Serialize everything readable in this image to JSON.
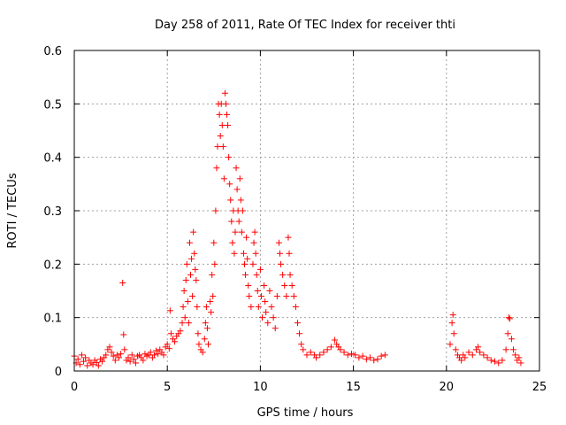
{
  "chart_data": {
    "type": "scatter",
    "title": "Day 258 of 2011, Rate Of TEC Index for receiver thti",
    "xlabel": "GPS time / hours",
    "ylabel": "ROTI / TECUs",
    "xlim": [
      0,
      25
    ],
    "ylim": [
      0,
      0.6
    ],
    "xticks": [
      0,
      5,
      10,
      15,
      20,
      25
    ],
    "xtick_labels": [
      "0",
      "5",
      "10",
      "15",
      "20",
      "25"
    ],
    "yticks": [
      0,
      0.1,
      0.2,
      0.3,
      0.4,
      0.5,
      0.6
    ],
    "ytick_labels": [
      "0",
      "0.1",
      "0.2",
      "0.3",
      "0.4",
      "0.5",
      "0.6"
    ],
    "grid": true,
    "marker": "plus",
    "color": "#ff0000",
    "series": [
      {
        "values_note": "",
        "points": [
          [
            0.0,
            0.028
          ],
          [
            0.1,
            0.015
          ],
          [
            0.2,
            0.022
          ],
          [
            0.3,
            0.012
          ],
          [
            0.4,
            0.03
          ],
          [
            0.5,
            0.018
          ],
          [
            0.6,
            0.025
          ],
          [
            0.7,
            0.01
          ],
          [
            0.8,
            0.02
          ],
          [
            0.9,
            0.015
          ],
          [
            1.0,
            0.012
          ],
          [
            1.1,
            0.02
          ],
          [
            1.2,
            0.016
          ],
          [
            1.3,
            0.01
          ],
          [
            1.4,
            0.022
          ],
          [
            1.5,
            0.018
          ],
          [
            1.6,
            0.025
          ],
          [
            1.7,
            0.03
          ],
          [
            1.8,
            0.04
          ],
          [
            1.9,
            0.045
          ],
          [
            2.0,
            0.035
          ],
          [
            2.1,
            0.028
          ],
          [
            2.2,
            0.02
          ],
          [
            2.3,
            0.03
          ],
          [
            2.4,
            0.025
          ],
          [
            2.5,
            0.032
          ],
          [
            2.6,
            0.165
          ],
          [
            2.65,
            0.068
          ],
          [
            2.7,
            0.04
          ],
          [
            2.8,
            0.02
          ],
          [
            2.9,
            0.025
          ],
          [
            3.0,
            0.018
          ],
          [
            3.1,
            0.03
          ],
          [
            3.2,
            0.022
          ],
          [
            3.3,
            0.015
          ],
          [
            3.4,
            0.028
          ],
          [
            3.5,
            0.03
          ],
          [
            3.6,
            0.025
          ],
          [
            3.7,
            0.02
          ],
          [
            3.8,
            0.032
          ],
          [
            3.9,
            0.028
          ],
          [
            4.0,
            0.03
          ],
          [
            4.1,
            0.035
          ],
          [
            4.2,
            0.025
          ],
          [
            4.3,
            0.03
          ],
          [
            4.4,
            0.038
          ],
          [
            4.5,
            0.032
          ],
          [
            4.6,
            0.04
          ],
          [
            4.7,
            0.035
          ],
          [
            4.8,
            0.03
          ],
          [
            4.9,
            0.045
          ],
          [
            5.0,
            0.05
          ],
          [
            5.1,
            0.042
          ],
          [
            5.15,
            0.113
          ],
          [
            5.2,
            0.07
          ],
          [
            5.3,
            0.06
          ],
          [
            5.4,
            0.055
          ],
          [
            5.5,
            0.065
          ],
          [
            5.6,
            0.07
          ],
          [
            5.7,
            0.075
          ],
          [
            5.8,
            0.09
          ],
          [
            5.85,
            0.12
          ],
          [
            5.9,
            0.15
          ],
          [
            5.95,
            0.1
          ],
          [
            6.0,
            0.17
          ],
          [
            6.05,
            0.2
          ],
          [
            6.1,
            0.13
          ],
          [
            6.15,
            0.09
          ],
          [
            6.2,
            0.24
          ],
          [
            6.25,
            0.18
          ],
          [
            6.3,
            0.21
          ],
          [
            6.35,
            0.14
          ],
          [
            6.4,
            0.26
          ],
          [
            6.45,
            0.22
          ],
          [
            6.5,
            0.19
          ],
          [
            6.55,
            0.17
          ],
          [
            6.6,
            0.12
          ],
          [
            6.65,
            0.07
          ],
          [
            6.7,
            0.05
          ],
          [
            6.8,
            0.04
          ],
          [
            6.9,
            0.035
          ],
          [
            7.0,
            0.06
          ],
          [
            7.05,
            0.09
          ],
          [
            7.1,
            0.12
          ],
          [
            7.15,
            0.08
          ],
          [
            7.2,
            0.05
          ],
          [
            7.3,
            0.13
          ],
          [
            7.35,
            0.11
          ],
          [
            7.4,
            0.18
          ],
          [
            7.45,
            0.14
          ],
          [
            7.5,
            0.24
          ],
          [
            7.55,
            0.2
          ],
          [
            7.6,
            0.3
          ],
          [
            7.65,
            0.38
          ],
          [
            7.7,
            0.42
          ],
          [
            7.75,
            0.5
          ],
          [
            7.8,
            0.48
          ],
          [
            7.85,
            0.44
          ],
          [
            7.9,
            0.5
          ],
          [
            7.95,
            0.46
          ],
          [
            8.0,
            0.42
          ],
          [
            8.05,
            0.36
          ],
          [
            8.1,
            0.52
          ],
          [
            8.15,
            0.5
          ],
          [
            8.2,
            0.48
          ],
          [
            8.25,
            0.46
          ],
          [
            8.3,
            0.4
          ],
          [
            8.35,
            0.35
          ],
          [
            8.4,
            0.32
          ],
          [
            8.45,
            0.28
          ],
          [
            8.5,
            0.24
          ],
          [
            8.55,
            0.3
          ],
          [
            8.6,
            0.22
          ],
          [
            8.65,
            0.26
          ],
          [
            8.7,
            0.38
          ],
          [
            8.75,
            0.34
          ],
          [
            8.8,
            0.3
          ],
          [
            8.85,
            0.28
          ],
          [
            8.9,
            0.36
          ],
          [
            8.95,
            0.32
          ],
          [
            9.0,
            0.26
          ],
          [
            9.05,
            0.3
          ],
          [
            9.1,
            0.22
          ],
          [
            9.15,
            0.2
          ],
          [
            9.2,
            0.18
          ],
          [
            9.25,
            0.25
          ],
          [
            9.3,
            0.21
          ],
          [
            9.35,
            0.16
          ],
          [
            9.4,
            0.14
          ],
          [
            9.5,
            0.12
          ],
          [
            9.6,
            0.2
          ],
          [
            9.65,
            0.24
          ],
          [
            9.7,
            0.26
          ],
          [
            9.75,
            0.22
          ],
          [
            9.8,
            0.18
          ],
          [
            9.85,
            0.15
          ],
          [
            9.9,
            0.12
          ],
          [
            10.0,
            0.19
          ],
          [
            10.05,
            0.14
          ],
          [
            10.1,
            0.1
          ],
          [
            10.2,
            0.16
          ],
          [
            10.25,
            0.13
          ],
          [
            10.3,
            0.11
          ],
          [
            10.4,
            0.09
          ],
          [
            10.5,
            0.15
          ],
          [
            10.6,
            0.12
          ],
          [
            10.7,
            0.1
          ],
          [
            10.8,
            0.08
          ],
          [
            10.9,
            0.14
          ],
          [
            11.0,
            0.24
          ],
          [
            11.05,
            0.22
          ],
          [
            11.1,
            0.2
          ],
          [
            11.2,
            0.18
          ],
          [
            11.3,
            0.16
          ],
          [
            11.4,
            0.14
          ],
          [
            11.5,
            0.25
          ],
          [
            11.55,
            0.22
          ],
          [
            11.6,
            0.18
          ],
          [
            11.7,
            0.16
          ],
          [
            11.8,
            0.14
          ],
          [
            11.9,
            0.12
          ],
          [
            12.0,
            0.09
          ],
          [
            12.1,
            0.07
          ],
          [
            12.2,
            0.05
          ],
          [
            12.3,
            0.04
          ],
          [
            12.5,
            0.03
          ],
          [
            12.7,
            0.035
          ],
          [
            12.9,
            0.03
          ],
          [
            13.0,
            0.025
          ],
          [
            13.2,
            0.03
          ],
          [
            13.4,
            0.035
          ],
          [
            13.6,
            0.04
          ],
          [
            13.8,
            0.045
          ],
          [
            14.0,
            0.058
          ],
          [
            14.1,
            0.05
          ],
          [
            14.2,
            0.045
          ],
          [
            14.3,
            0.04
          ],
          [
            14.5,
            0.035
          ],
          [
            14.7,
            0.03
          ],
          [
            14.9,
            0.032
          ],
          [
            15.1,
            0.03
          ],
          [
            15.3,
            0.025
          ],
          [
            15.5,
            0.028
          ],
          [
            15.7,
            0.022
          ],
          [
            15.9,
            0.025
          ],
          [
            16.1,
            0.02
          ],
          [
            16.3,
            0.022
          ],
          [
            16.5,
            0.028
          ],
          [
            16.7,
            0.03
          ],
          [
            20.2,
            0.05
          ],
          [
            20.3,
            0.09
          ],
          [
            20.35,
            0.105
          ],
          [
            20.4,
            0.07
          ],
          [
            20.5,
            0.04
          ],
          [
            20.6,
            0.03
          ],
          [
            20.7,
            0.025
          ],
          [
            20.8,
            0.02
          ],
          [
            20.9,
            0.03
          ],
          [
            21.0,
            0.025
          ],
          [
            21.2,
            0.035
          ],
          [
            21.4,
            0.03
          ],
          [
            21.6,
            0.04
          ],
          [
            21.7,
            0.045
          ],
          [
            21.8,
            0.035
          ],
          [
            22.0,
            0.03
          ],
          [
            22.2,
            0.025
          ],
          [
            22.4,
            0.02
          ],
          [
            22.6,
            0.018
          ],
          [
            22.8,
            0.015
          ],
          [
            23.0,
            0.02
          ],
          [
            23.2,
            0.04
          ],
          [
            23.3,
            0.07
          ],
          [
            23.35,
            0.1
          ],
          [
            23.4,
            0.098
          ],
          [
            23.5,
            0.06
          ],
          [
            23.6,
            0.04
          ],
          [
            23.7,
            0.03
          ],
          [
            23.8,
            0.02
          ],
          [
            23.9,
            0.025
          ],
          [
            24.0,
            0.015
          ]
        ]
      }
    ]
  }
}
